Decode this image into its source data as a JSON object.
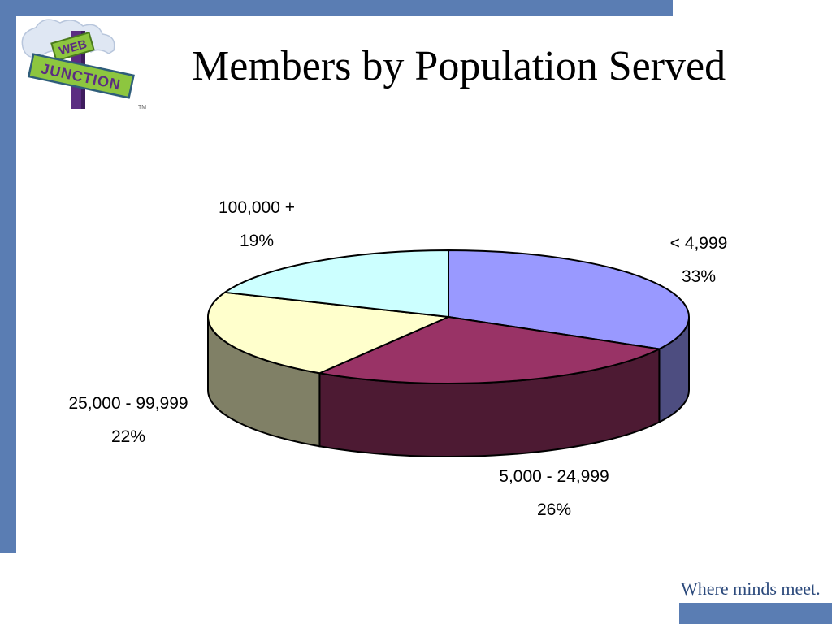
{
  "slide": {
    "title": "Members by Population Served",
    "tagline": "Where minds meet.",
    "logo": {
      "line1": "WEB",
      "line2": "JUNCTION",
      "mark": "TM"
    }
  },
  "colors": {
    "frame": "#5a7db3",
    "tagline": "#2c4a7c"
  },
  "chart_data": {
    "type": "pie",
    "style": "3d",
    "title": "",
    "slices": [
      {
        "label": "< 4,999",
        "percent_label": "33%",
        "value": 33,
        "color": "#9999ff",
        "side_color": "#4d4d80"
      },
      {
        "label": "5,000 - 24,999",
        "percent_label": "26%",
        "value": 26,
        "color": "#993366",
        "side_color": "#4d1a33"
      },
      {
        "label": "25,000 - 99,999",
        "percent_label": "22%",
        "value": 22,
        "color": "#ffffcc",
        "side_color": "#808066"
      },
      {
        "label": "100,000 +",
        "percent_label": "19%",
        "value": 19,
        "color": "#ccffff",
        "side_color": "#668080"
      }
    ]
  }
}
